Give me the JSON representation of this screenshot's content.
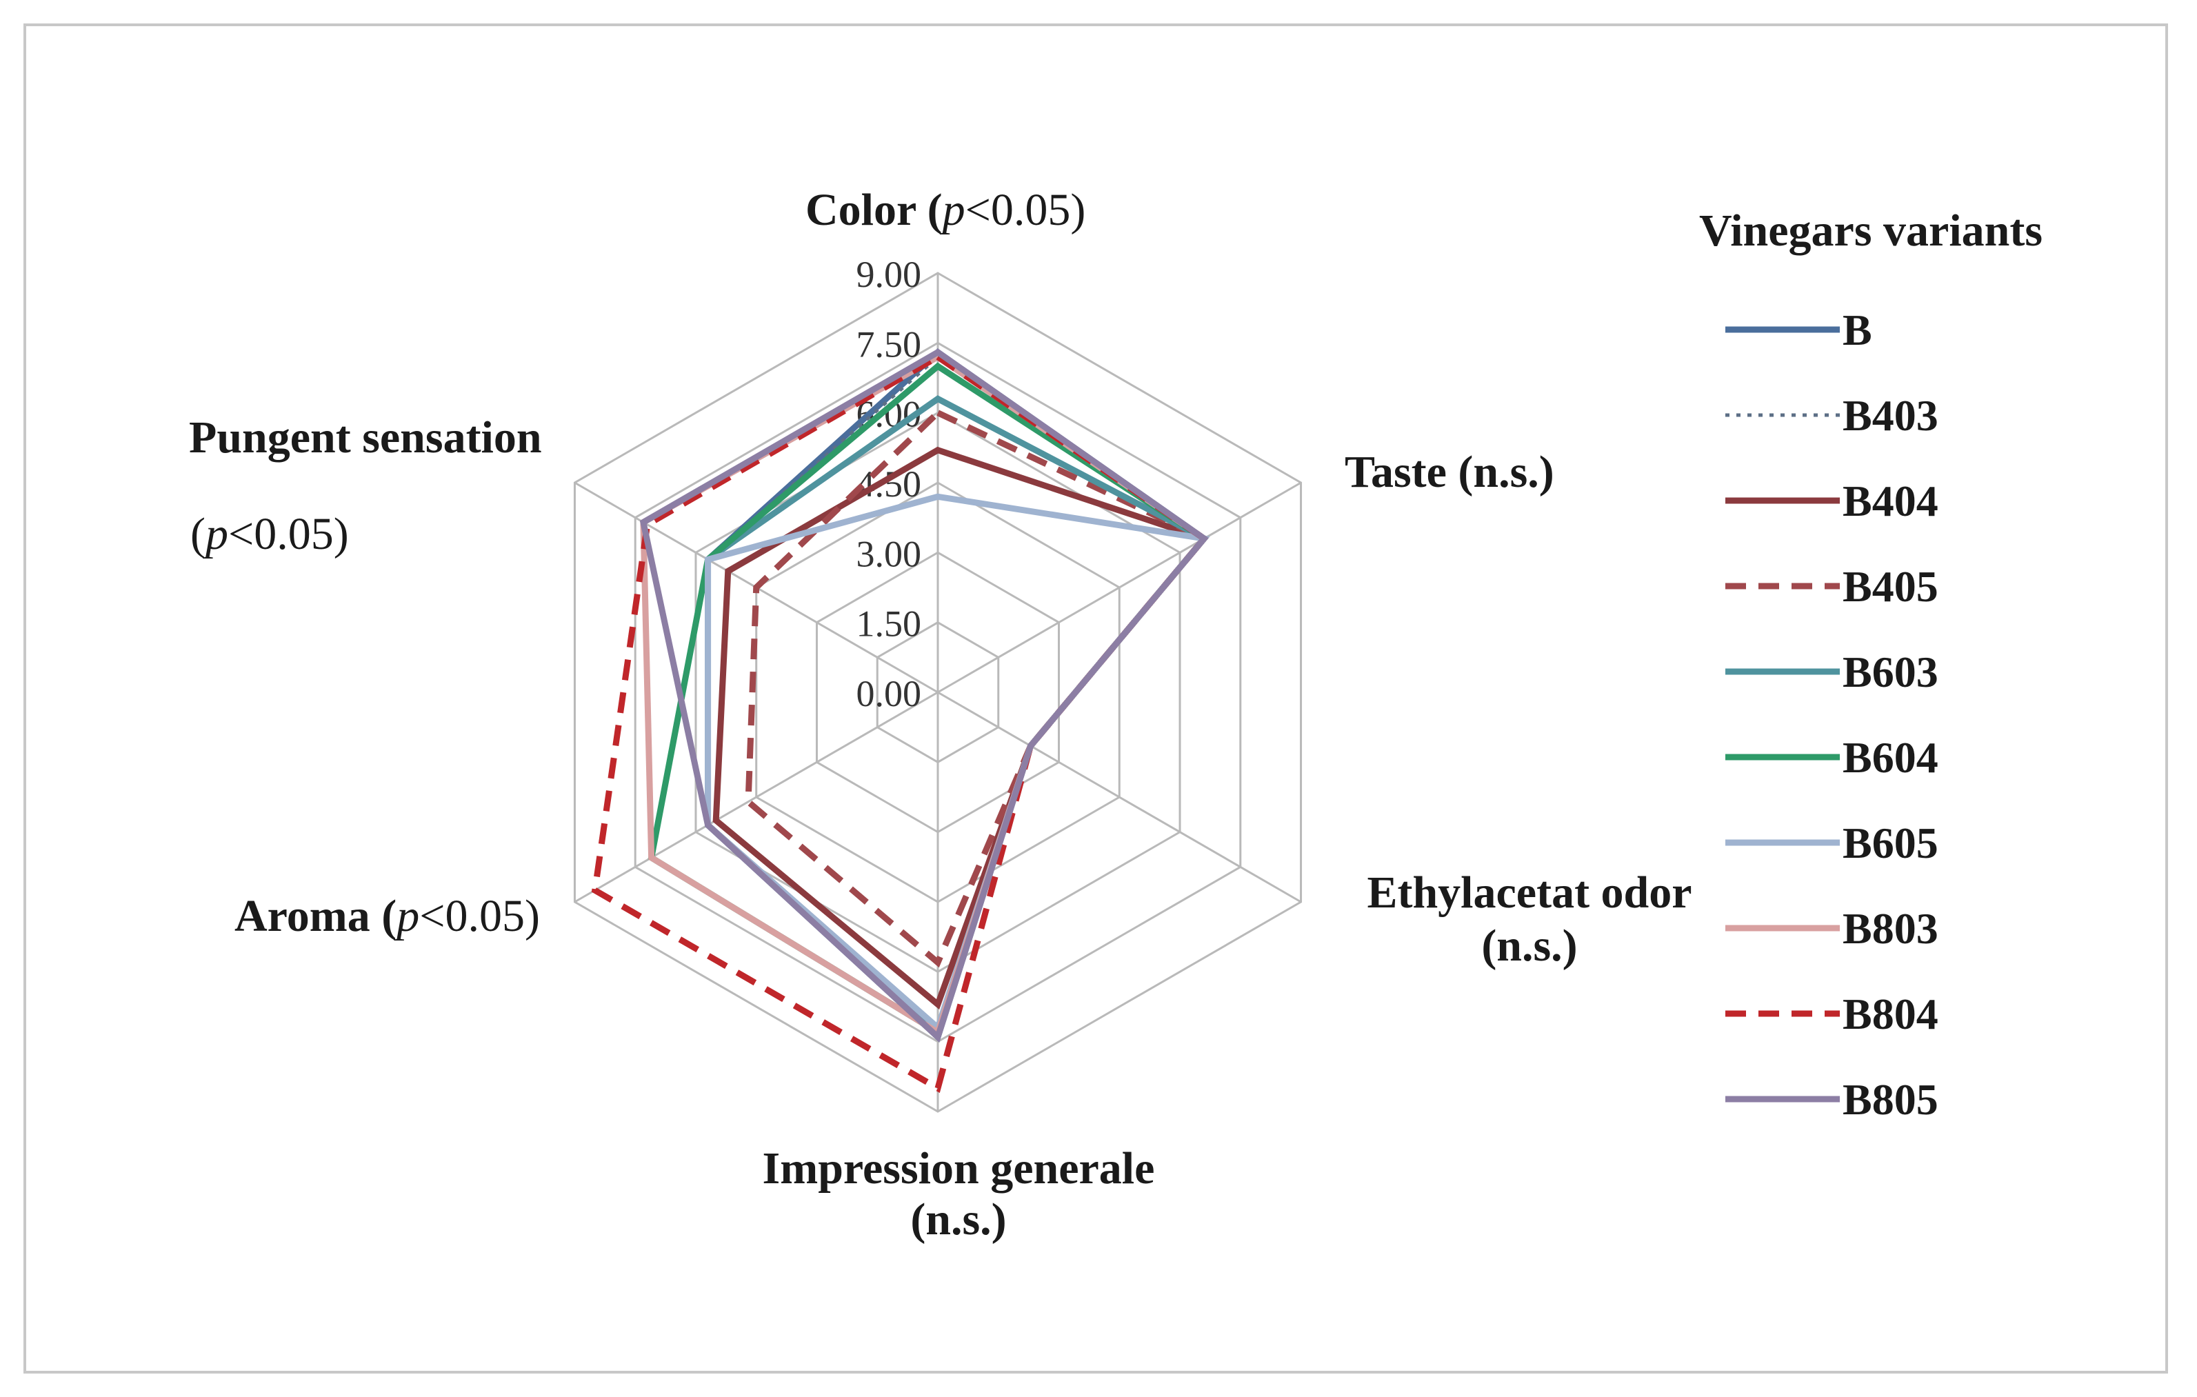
{
  "chart_data": {
    "type": "radar",
    "title": "",
    "axes": [
      {
        "label": "Color",
        "stat": "p<0.05"
      },
      {
        "label": "Taste",
        "stat": "(n.s.)"
      },
      {
        "label": "Ethylacetat odor",
        "stat": "(n.s.)"
      },
      {
        "label": "Impression generale",
        "stat": "(n.s.)"
      },
      {
        "label": "Aroma",
        "stat": "p<0.05"
      },
      {
        "label": "Pungent sensation",
        "stat": "p<0.05"
      }
    ],
    "axis_text": {
      "color_prefix": "Color (",
      "color_italic": "p",
      "color_suffix": "<0.05)",
      "taste": "Taste (n.s.)",
      "ethyl_line1": "Ethylacetat odor",
      "ethyl_line2": "(n.s.)",
      "impression_line1": "Impression generale",
      "impression_line2": "(n.s.)",
      "aroma_prefix": "Aroma (",
      "aroma_italic": "p",
      "aroma_suffix": "<0.05)",
      "pungent_line1": "Pungent sensation",
      "pungent_open": "(",
      "pungent_italic": "p",
      "pungent_suffix": "<0.05)"
    },
    "rlim": [
      0,
      9
    ],
    "ticks": [
      "0.00",
      "1.50",
      "3.00",
      "4.50",
      "6.00",
      "7.50",
      "9.00"
    ],
    "tick_values": [
      0,
      1.5,
      3,
      4.5,
      6,
      7.5,
      9
    ],
    "legend_title": "Vinegars variants",
    "series": [
      {
        "name": "B",
        "color": "#4a6e9c",
        "dash": "solid",
        "values": [
          7.3,
          6.6,
          2.3,
          7.4,
          5.7,
          5.7
        ]
      },
      {
        "name": "B403",
        "color": "#5c6f86",
        "dash": "dotted",
        "values": [
          7.2,
          6.6,
          2.3,
          7.4,
          5.7,
          5.7
        ]
      },
      {
        "name": "B404",
        "color": "#8b3a3e",
        "dash": "solid",
        "values": [
          5.2,
          6.6,
          2.3,
          6.7,
          5.5,
          5.2
        ]
      },
      {
        "name": "B405",
        "color": "#a0484c",
        "dash": "dashed",
        "values": [
          6.0,
          6.6,
          2.3,
          5.8,
          4.7,
          4.5
        ]
      },
      {
        "name": "B603",
        "color": "#4f939e",
        "dash": "solid",
        "values": [
          6.3,
          6.6,
          2.3,
          7.3,
          5.7,
          5.7
        ]
      },
      {
        "name": "B604",
        "color": "#2e9a68",
        "dash": "solid",
        "values": [
          7.0,
          6.6,
          2.3,
          7.3,
          7.1,
          5.7
        ]
      },
      {
        "name": "B605",
        "color": "#9fb3d0",
        "dash": "solid",
        "values": [
          4.2,
          6.6,
          2.3,
          7.2,
          5.7,
          5.7
        ]
      },
      {
        "name": "B803",
        "color": "#d8a0a0",
        "dash": "solid",
        "values": [
          7.2,
          6.6,
          2.3,
          7.3,
          7.1,
          7.3
        ]
      },
      {
        "name": "B804",
        "color": "#c0262a",
        "dash": "dashed",
        "values": [
          7.2,
          6.6,
          2.3,
          8.5,
          8.5,
          7.2
        ]
      },
      {
        "name": "B805",
        "color": "#8c7ea4",
        "dash": "solid",
        "values": [
          7.3,
          6.6,
          2.3,
          7.4,
          5.7,
          7.3
        ]
      }
    ]
  }
}
